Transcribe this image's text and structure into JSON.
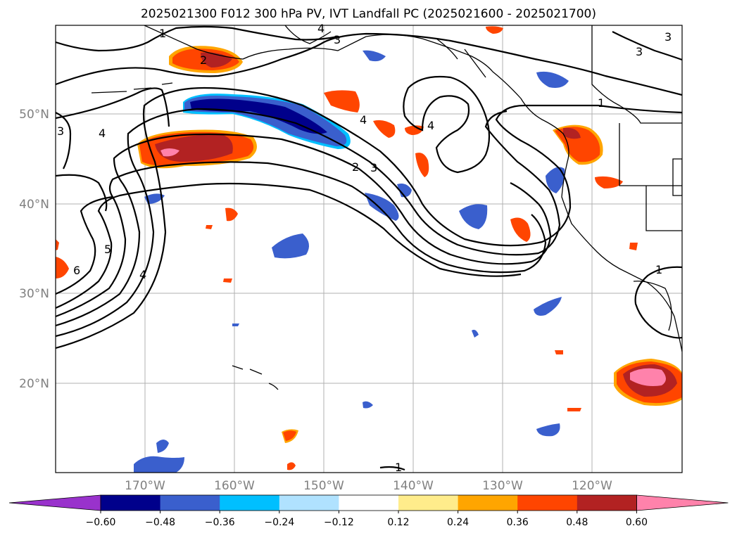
{
  "title": "2025021300 F012 300 hPa PV, IVT Landfall PC (2025021600 - 2025021700)",
  "lat_labels": [
    "50°N",
    "40°N",
    "30°N",
    "20°N"
  ],
  "lon_labels": [
    "170°W",
    "160°W",
    "150°W",
    "140°W",
    "130°W",
    "120°W"
  ],
  "contour_labels": [
    "1",
    "2",
    "3",
    "3",
    "4",
    "3",
    "4",
    "2",
    "3",
    "4",
    "1",
    "5",
    "6",
    "4",
    "1",
    "1",
    "3",
    "4"
  ],
  "colorbar": {
    "colors": [
      "#9932cc",
      "#00008b",
      "#3a5fcd",
      "#00bfff",
      "#b0e2ff",
      "#ffffff",
      "#ffec8b",
      "#ffa500",
      "#ff4500",
      "#b22222",
      "#ff82ab"
    ],
    "labels": [
      "−0.60",
      "−0.48",
      "−0.36",
      "−0.24",
      "−0.12",
      "0.12",
      "0.24",
      "0.36",
      "0.48",
      "0.60"
    ]
  }
}
